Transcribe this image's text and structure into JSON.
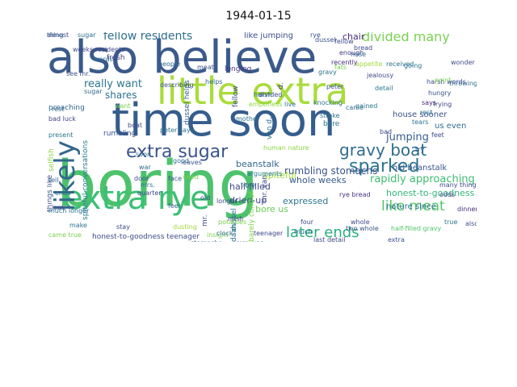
{
  "title": "1944-01-15",
  "words": [
    {
      "text": "boring",
      "color": "#4cc26c"
    },
    {
      "text": "also believe",
      "color": "#3b5a8b"
    },
    {
      "text": "time soon",
      "color": "#355d8d"
    },
    {
      "text": "little extra",
      "color": "#a9dc3b"
    },
    {
      "text": "extra rye",
      "color": "#3cbf75"
    },
    {
      "text": "likely",
      "color": "#33668c"
    },
    {
      "text": "extra sugar",
      "color": "#3a548c"
    },
    {
      "text": "gravy boat",
      "color": "#2f6c8e"
    },
    {
      "text": "sparked",
      "color": "#2c738e"
    },
    {
      "text": "later ends",
      "color": "#29af7f"
    },
    {
      "text": "fellow residents",
      "color": "#2e6f8e"
    },
    {
      "text": "divided many",
      "color": "#7ad151"
    },
    {
      "text": "like meat",
      "color": "#52c569"
    },
    {
      "text": "rumbling stomachs",
      "color": "#3a528b"
    },
    {
      "text": "really want",
      "color": "#2b768e"
    },
    {
      "text": "shares",
      "color": "#2d708e"
    },
    {
      "text": "rapidly approaching",
      "color": "#3fbc73"
    },
    {
      "text": "jumping",
      "color": "#375b8d"
    },
    {
      "text": "honest-to-goodness",
      "color": "#34b679"
    },
    {
      "text": "expressed",
      "color": "#2a768e"
    },
    {
      "text": "bore us",
      "color": "#6ccd5a"
    },
    {
      "text": "half-filled",
      "color": "#3e4989"
    },
    {
      "text": "dried-up",
      "color": "#3f4788"
    },
    {
      "text": "beanstalk",
      "color": "#31688e"
    },
    {
      "text": "honest-to-goodness teenager",
      "color": "#3e4c8a"
    },
    {
      "text": "spiteful conversations",
      "color": "#287c8e"
    },
    {
      "text": "whole weeks",
      "color": "#375a8c"
    },
    {
      "text": "house sooner",
      "color": "#3a538b"
    },
    {
      "text": "us even",
      "color": "#2e6e8e"
    },
    {
      "text": "old beanstalk",
      "color": "#38588c"
    },
    {
      "text": "nature since",
      "color": "#2c718e"
    },
    {
      "text": "bore",
      "color": "#2a778e"
    },
    {
      "text": "barely control",
      "color": "#7fd34e"
    },
    {
      "text": "like jumping",
      "color": "#3c4f8a"
    },
    {
      "text": "dussel helps",
      "color": "#355e8d"
    },
    {
      "text": "spiteful",
      "color": "#a2da37"
    },
    {
      "text": "rye bread",
      "color": "#46337e"
    },
    {
      "text": "since",
      "color": "#3d4e8a"
    },
    {
      "text": "preaching",
      "color": "#31688e"
    },
    {
      "text": "harsh words",
      "color": "#3e4a89"
    },
    {
      "text": "chair",
      "color": "#472c7a"
    },
    {
      "text": "fresh",
      "color": "#414487"
    },
    {
      "text": "rumbling",
      "color": "#3b528b"
    },
    {
      "text": "longing",
      "color": "#443983"
    },
    {
      "text": "selfish",
      "color": "#8bd646"
    },
    {
      "text": "things like",
      "color": "#3b528b"
    },
    {
      "text": "much longer",
      "color": "#2c738e"
    },
    {
      "text": "came true",
      "color": "#7ad151"
    },
    {
      "text": "many things",
      "color": "#3e4989"
    },
    {
      "text": "extra",
      "color": "#3a538b"
    },
    {
      "text": "half-filled gravy",
      "color": "#52c569"
    },
    {
      "text": "insight",
      "color": "#7ad151"
    },
    {
      "text": "teenager",
      "color": "#3e4a89"
    },
    {
      "text": "dussel",
      "color": "#2a788e"
    },
    {
      "text": "whole",
      "color": "#3f4889"
    },
    {
      "text": "dinner",
      "color": "#472f7d"
    },
    {
      "text": "bad luck",
      "color": "#414487"
    },
    {
      "text": "rest",
      "color": "#31688e"
    },
    {
      "text": "sugar",
      "color": "#2d708e"
    },
    {
      "text": "present",
      "color": "#2a768e"
    },
    {
      "text": "tell",
      "color": "#31688e"
    },
    {
      "text": "ends",
      "color": "#2c728e"
    },
    {
      "text": "look",
      "color": "#3e4989"
    },
    {
      "text": "make",
      "color": "#2d708e"
    },
    {
      "text": "hungry",
      "color": "#3b528b"
    },
    {
      "text": "frying",
      "color": "#3f4788"
    },
    {
      "text": "says",
      "color": "#482878"
    },
    {
      "text": "rest",
      "color": "#2d708e"
    },
    {
      "text": "tears",
      "color": "#2c728e"
    },
    {
      "text": "feet",
      "color": "#3e4a89"
    },
    {
      "text": "true",
      "color": "#2a788e"
    },
    {
      "text": "also",
      "color": "#3b528b"
    },
    {
      "text": "odds",
      "color": "#414487"
    },
    {
      "text": "try",
      "color": "#31688e"
    },
    {
      "text": "bad",
      "color": "#3e4c8a"
    },
    {
      "text": "stroke",
      "color": "#2c728e"
    },
    {
      "text": "gained",
      "color": "#2a768e"
    },
    {
      "text": "bread",
      "color": "#3e4989"
    },
    {
      "text": "gravy",
      "color": "#2d708e"
    },
    {
      "text": "enough",
      "color": "#443983"
    },
    {
      "text": "recently",
      "color": "#472d7b"
    },
    {
      "text": "rye",
      "color": "#3b528b"
    },
    {
      "text": "fellow",
      "color": "#3e4989"
    },
    {
      "text": "nose",
      "color": "#31688e"
    },
    {
      "text": "received",
      "color": "#2c728e"
    },
    {
      "text": "going",
      "color": "#2d708e"
    },
    {
      "text": "wonder",
      "color": "#3e4c8a"
    },
    {
      "text": "fats",
      "color": "#7ad151"
    },
    {
      "text": "appetite",
      "color": "#a2da37"
    },
    {
      "text": "detail",
      "color": "#2a788e"
    },
    {
      "text": "jealousy",
      "color": "#3e4989"
    },
    {
      "text": "point",
      "color": "#7ad151"
    },
    {
      "text": "throwing",
      "color": "#31688e"
    },
    {
      "text": "peter",
      "color": "#3b528b"
    },
    {
      "text": "knocking",
      "color": "#2c728e"
    },
    {
      "text": "came",
      "color": "#2d708e"
    },
    {
      "text": "four",
      "color": "#3e4989"
    },
    {
      "text": "much",
      "color": "#31688e"
    },
    {
      "text": "sooner",
      "color": "#443983"
    },
    {
      "text": "last detail",
      "color": "#3e4c8a"
    },
    {
      "text": "van daan",
      "color": "#7ad151"
    },
    {
      "text": "two whole",
      "color": "#3b528b"
    },
    {
      "text": "human nature",
      "color": "#8bd646"
    },
    {
      "text": "mr. van",
      "color": "#3e4989"
    },
    {
      "text": "mrs. van",
      "color": "#2c728e"
    },
    {
      "text": "feel",
      "color": "#31688e"
    },
    {
      "text": "old",
      "color": "#3e4a89"
    },
    {
      "text": "arguments",
      "color": "#2a768e"
    },
    {
      "text": "time",
      "color": "#31688e"
    },
    {
      "text": "leaves",
      "color": "#3b528b"
    },
    {
      "text": "need",
      "color": "#7ad151"
    },
    {
      "text": "stay",
      "color": "#3e4989"
    },
    {
      "text": "soon",
      "color": "#2d708e"
    },
    {
      "text": "war",
      "color": "#31688e"
    },
    {
      "text": "door",
      "color": "#3e4c8a"
    },
    {
      "text": "mrs.",
      "color": "#2c728e"
    },
    {
      "text": "face",
      "color": "#3b528b"
    },
    {
      "text": "good",
      "color": "#2d708e"
    },
    {
      "text": "quarter",
      "color": "#3e4989"
    },
    {
      "text": "clock",
      "color": "#31688e"
    },
    {
      "text": "daan",
      "color": "#2c728e"
    },
    {
      "text": "longer",
      "color": "#3e4a89"
    },
    {
      "text": "mish",
      "color": "#443983"
    },
    {
      "text": "dusting",
      "color": "#a2da37"
    },
    {
      "text": "little",
      "color": "#3b528b"
    },
    {
      "text": "stomachs",
      "color": "#31688e"
    },
    {
      "text": "potatoes",
      "color": "#7ad151"
    },
    {
      "text": "mr.",
      "color": "#3e4989"
    },
    {
      "text": "van d.",
      "color": "#2c728e"
    },
    {
      "text": "people",
      "color": "#31688e"
    },
    {
      "text": "meat",
      "color": "#3b528b"
    },
    {
      "text": "divided",
      "color": "#3e4c8a"
    },
    {
      "text": "live",
      "color": "#2d708e"
    },
    {
      "text": "harsh",
      "color": "#31688e"
    },
    {
      "text": "weeks residents",
      "color": "#3e4989"
    },
    {
      "text": "words",
      "color": "#2c728e"
    },
    {
      "text": "see mr.",
      "color": "#3b528b"
    },
    {
      "text": "sugar",
      "color": "#31688e"
    },
    {
      "text": "want",
      "color": "#7ad151"
    },
    {
      "text": "boat",
      "color": "#3e4989"
    },
    {
      "text": "peter says",
      "color": "#2d708e"
    },
    {
      "text": "describing",
      "color": "#3b528b"
    },
    {
      "text": "helps",
      "color": "#31688e"
    },
    {
      "text": "fellow",
      "color": "#3e4a89"
    },
    {
      "text": "d.",
      "color": "#443983"
    },
    {
      "text": "mother",
      "color": "#2c728e"
    },
    {
      "text": "emptiness",
      "color": "#8bd646"
    },
    {
      "text": "dussel",
      "color": "#3b528b"
    },
    {
      "text": "thing",
      "color": "#31688e"
    },
    {
      "text": "almost",
      "color": "#3e4989"
    }
  ]
}
